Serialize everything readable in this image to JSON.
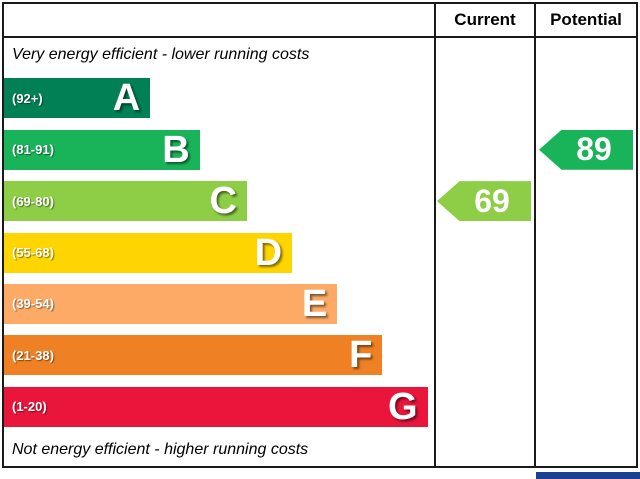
{
  "header": {
    "current_label": "Current",
    "potential_label": "Potential"
  },
  "captions": {
    "top": "Very energy efficient - lower running costs",
    "bottom": "Not energy efficient - higher running costs"
  },
  "bands": [
    {
      "letter": "A",
      "range": "(92+)",
      "color": "#008054",
      "width_pct": 34
    },
    {
      "letter": "B",
      "range": "(81-91)",
      "color": "#19b459",
      "width_pct": 45.5
    },
    {
      "letter": "C",
      "range": "(69-80)",
      "color": "#8dce46",
      "width_pct": 56.5
    },
    {
      "letter": "D",
      "range": "(55-68)",
      "color": "#ffd500",
      "width_pct": 67
    },
    {
      "letter": "E",
      "range": "(39-54)",
      "color": "#fcaa65",
      "width_pct": 77.5
    },
    {
      "letter": "F",
      "range": "(21-38)",
      "color": "#ef8023",
      "width_pct": 88
    },
    {
      "letter": "G",
      "range": "(1-20)",
      "color": "#e9153b",
      "width_pct": 98.5
    }
  ],
  "ratings": {
    "current": {
      "value": 69,
      "band": "C",
      "color": "#8dce46"
    },
    "potential": {
      "value": 89,
      "band": "B",
      "color": "#19b459"
    }
  },
  "footer_accent_color": "#1c3f94",
  "chart_data": {
    "type": "bar",
    "categories": [
      "A",
      "B",
      "C",
      "D",
      "E",
      "F",
      "G"
    ],
    "band_ranges": [
      "(92+)",
      "(81-91)",
      "(69-80)",
      "(55-68)",
      "(39-54)",
      "(21-38)",
      "(1-20)"
    ],
    "bar_lengths_pct": [
      34,
      45.5,
      56.5,
      67,
      77.5,
      88,
      98.5
    ],
    "series": [
      {
        "name": "Current",
        "value": 69,
        "band": "C"
      },
      {
        "name": "Potential",
        "value": 89,
        "band": "B"
      }
    ],
    "annotations": [
      "Very energy efficient - lower running costs",
      "Not energy efficient - higher running costs"
    ],
    "legend_position": "none",
    "grid": false
  }
}
